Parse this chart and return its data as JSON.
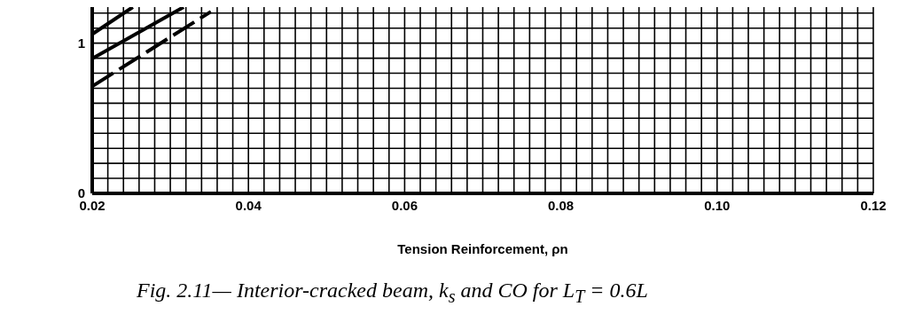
{
  "chart_data": {
    "type": "line",
    "xlabel": "Tension  Reinforcement, ρn",
    "annotations": [
      "Fig. 2.11— Interior-cracked beam, k$_{s}$ and CO for L$_{T}$ = 0.6L"
    ],
    "xlim": [
      0.02,
      0.12
    ],
    "ylim": [
      0,
      1.24
    ],
    "xticks": [
      0.02,
      {
        "value": 0.022,
        "label": null
      },
      {
        "value": 0.024,
        "label": null
      },
      {
        "value": 0.026,
        "label": null
      },
      {
        "value": 0.028,
        "label": null
      },
      {
        "value": 0.03,
        "label": null
      },
      {
        "value": 0.032,
        "label": null
      },
      {
        "value": 0.034,
        "label": null
      },
      {
        "value": 0.036,
        "label": null
      },
      {
        "value": 0.038,
        "label": null
      },
      0.04,
      {
        "value": 0.042,
        "label": null
      },
      {
        "value": 0.044,
        "label": null
      },
      {
        "value": 0.046,
        "label": null
      },
      {
        "value": 0.048,
        "label": null
      },
      {
        "value": 0.05,
        "label": null
      },
      {
        "value": 0.052,
        "label": null
      },
      {
        "value": 0.054,
        "label": null
      },
      {
        "value": 0.056,
        "label": null
      },
      {
        "value": 0.058,
        "label": null
      },
      0.06,
      {
        "value": 0.062,
        "label": null
      },
      {
        "value": 0.064,
        "label": null
      },
      {
        "value": 0.066,
        "label": null
      },
      {
        "value": 0.068,
        "label": null
      },
      {
        "value": 0.07,
        "label": null
      },
      {
        "value": 0.072,
        "label": null
      },
      {
        "value": 0.074,
        "label": null
      },
      {
        "value": 0.076,
        "label": null
      },
      {
        "value": 0.078,
        "label": null
      },
      0.08,
      {
        "value": 0.082,
        "label": null
      },
      {
        "value": 0.084,
        "label": null
      },
      {
        "value": 0.086,
        "label": null
      },
      {
        "value": 0.088,
        "label": null
      },
      {
        "value": 0.09,
        "label": null
      },
      {
        "value": 0.092,
        "label": null
      },
      {
        "value": 0.094,
        "label": null
      },
      {
        "value": 0.096,
        "label": null
      },
      {
        "value": 0.098,
        "label": null
      },
      {
        "value": 0.1,
        "label": "0.10"
      },
      {
        "value": 0.102,
        "label": null
      },
      {
        "value": 0.104,
        "label": null
      },
      {
        "value": 0.106,
        "label": null
      },
      {
        "value": 0.108,
        "label": null
      },
      {
        "value": 0.11,
        "label": null
      },
      {
        "value": 0.112,
        "label": null
      },
      {
        "value": 0.114,
        "label": null
      },
      {
        "value": 0.116,
        "label": null
      },
      {
        "value": 0.118,
        "label": null
      },
      0.12
    ],
    "yticks": [
      0,
      {
        "value": 0.1,
        "label": null
      },
      {
        "value": 0.2,
        "label": null
      },
      {
        "value": 0.3,
        "label": null
      },
      {
        "value": 0.4,
        "label": null
      },
      {
        "value": 0.5,
        "label": null
      },
      {
        "value": 0.6,
        "label": null
      },
      {
        "value": 0.7,
        "label": null
      },
      {
        "value": 0.8,
        "label": null
      },
      {
        "value": 0.9,
        "label": null
      },
      1,
      {
        "value": 1.1,
        "label": null
      },
      {
        "value": 1.2,
        "label": null
      }
    ],
    "grid": true,
    "marker": "none",
    "series": [
      {
        "color": "#000000",
        "x": [
          0.02,
          0.0252
        ],
        "values": [
          1.06,
          1.24
        ],
        "line_style": "solid"
      },
      {
        "color": "#000000",
        "x": [
          0.02,
          0.0317
        ],
        "values": [
          0.897,
          1.24
        ],
        "line_style": "solid"
      },
      {
        "color": "#000000",
        "x": [
          0.02,
          0.0352
        ],
        "values": [
          0.713,
          1.21
        ],
        "line_style": "dashed"
      }
    ]
  }
}
